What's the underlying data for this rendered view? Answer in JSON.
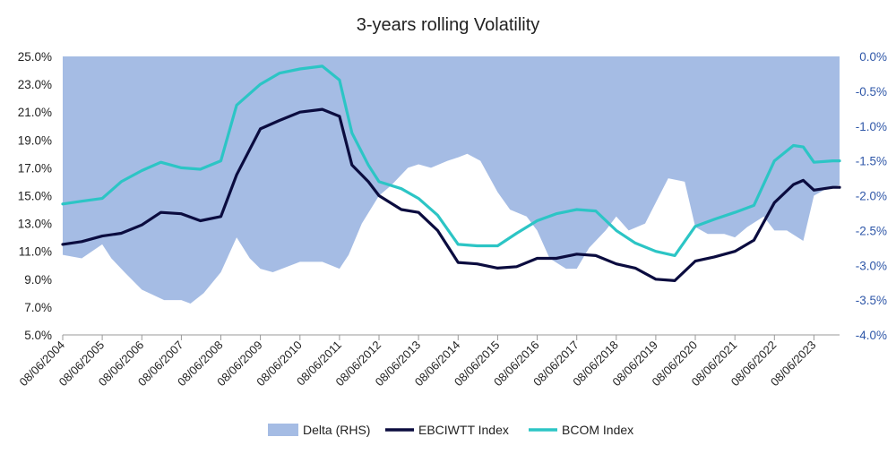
{
  "chart_data": {
    "type": "line",
    "title": "3-years rolling Volatility",
    "xlabel": "",
    "ylabel": "",
    "x_tick_labels": [
      "08/06/2004",
      "08/06/2005",
      "08/06/2006",
      "08/06/2007",
      "08/06/2008",
      "08/06/2009",
      "08/06/2010",
      "08/06/2011",
      "08/06/2012",
      "08/06/2013",
      "08/06/2014",
      "08/06/2015",
      "08/06/2016",
      "08/06/2017",
      "08/06/2018",
      "08/06/2019",
      "08/06/2020",
      "08/06/2021",
      "08/06/2022",
      "08/06/2023"
    ],
    "y_left": {
      "ticks": [
        "25.0%",
        "23.0%",
        "21.0%",
        "19.0%",
        "17.0%",
        "15.0%",
        "13.0%",
        "11.0%",
        "9.0%",
        "7.0%",
        "5.0%"
      ],
      "min": 5,
      "max": 25
    },
    "y_right": {
      "ticks": [
        "0.0%",
        "-0.5%",
        "-1.0%",
        "-1.5%",
        "-2.0%",
        "-2.5%",
        "-3.0%",
        "-3.5%",
        "-4.0%"
      ],
      "min": -4,
      "max": 0
    },
    "legend": {
      "position": "bottom"
    },
    "grid": false,
    "series": [
      {
        "name": "Delta (RHS)",
        "type": "area",
        "axis": "right",
        "color": "#a5bce4",
        "x": [
          "2004-06-08",
          "2004-12-01",
          "2005-06-08",
          "2005-09-01",
          "2006-01-01",
          "2006-06-08",
          "2007-01-01",
          "2007-06-08",
          "2007-09-01",
          "2008-01-01",
          "2008-06-08",
          "2008-11-01",
          "2009-03-01",
          "2009-06-08",
          "2009-10-01",
          "2010-06-08",
          "2011-01-01",
          "2011-06-08",
          "2011-09-01",
          "2012-01-01",
          "2012-06-08",
          "2012-10-01",
          "2013-03-01",
          "2013-06-08",
          "2013-10-01",
          "2014-03-01",
          "2014-06-08",
          "2014-09-01",
          "2015-01-01",
          "2015-06-08",
          "2015-10-01",
          "2016-03-01",
          "2016-06-08",
          "2016-10-01",
          "2017-03-01",
          "2017-06-08",
          "2017-10-01",
          "2018-03-01",
          "2018-06-08",
          "2018-10-01",
          "2019-03-01",
          "2019-06-08",
          "2019-10-01",
          "2020-03-01",
          "2020-06-08",
          "2020-10-01",
          "2021-03-01",
          "2021-06-08",
          "2021-10-01",
          "2022-03-01",
          "2022-06-08",
          "2022-10-01",
          "2023-03-01",
          "2023-06-08",
          "2023-10-01",
          "2024-02-01"
        ],
        "values": [
          -2.85,
          -2.9,
          -2.7,
          -2.9,
          -3.1,
          -3.35,
          -3.5,
          -3.5,
          -3.55,
          -3.4,
          -3.1,
          -2.6,
          -2.9,
          -3.05,
          -3.1,
          -2.95,
          -2.95,
          -3.05,
          -2.85,
          -2.4,
          -2.0,
          -1.85,
          -1.6,
          -1.55,
          -1.6,
          -1.5,
          -1.45,
          -1.4,
          -1.5,
          -1.95,
          -2.2,
          -2.3,
          -2.5,
          -2.9,
          -3.05,
          -3.05,
          -2.75,
          -2.5,
          -2.3,
          -2.5,
          -2.4,
          -2.1,
          -1.75,
          -1.8,
          -2.45,
          -2.55,
          -2.55,
          -2.6,
          -2.45,
          -2.3,
          -2.5,
          -2.5,
          -2.65,
          -2.0,
          -1.9,
          -1.85
        ]
      },
      {
        "name": "EBCIWTT Index",
        "type": "line",
        "axis": "left",
        "color": "#0b0c3f",
        "x": [
          "2004-06-08",
          "2004-12-01",
          "2005-06-08",
          "2005-12-01",
          "2006-06-08",
          "2006-12-01",
          "2007-06-08",
          "2007-12-01",
          "2008-06-08",
          "2008-11-01",
          "2009-06-08",
          "2009-12-01",
          "2010-06-08",
          "2011-01-01",
          "2011-06-08",
          "2011-10-01",
          "2012-03-01",
          "2012-06-08",
          "2013-01-01",
          "2013-06-08",
          "2013-12-01",
          "2014-06-08",
          "2014-12-01",
          "2015-06-08",
          "2015-12-01",
          "2016-06-08",
          "2016-12-01",
          "2017-06-08",
          "2017-12-01",
          "2018-06-08",
          "2018-12-01",
          "2019-06-08",
          "2019-12-01",
          "2020-06-08",
          "2020-12-01",
          "2021-06-08",
          "2021-12-01",
          "2022-06-08",
          "2022-12-01",
          "2023-03-01",
          "2023-06-08",
          "2023-12-01",
          "2024-02-01"
        ],
        "values": [
          11.5,
          11.7,
          12.1,
          12.3,
          12.9,
          13.8,
          13.7,
          13.2,
          13.5,
          16.5,
          19.8,
          20.4,
          21.0,
          21.2,
          20.7,
          17.2,
          16.0,
          15.0,
          14.0,
          13.8,
          12.5,
          10.2,
          10.1,
          9.8,
          9.9,
          10.5,
          10.5,
          10.8,
          10.7,
          10.1,
          9.8,
          9.0,
          8.9,
          10.3,
          10.6,
          11.0,
          11.8,
          14.5,
          15.8,
          16.1,
          15.4,
          15.6,
          15.6
        ]
      },
      {
        "name": "BCOM Index",
        "type": "line",
        "axis": "left",
        "color": "#2cc5c5",
        "x": [
          "2004-06-08",
          "2004-12-01",
          "2005-06-08",
          "2005-12-01",
          "2006-06-08",
          "2006-12-01",
          "2007-06-08",
          "2007-12-01",
          "2008-06-08",
          "2008-11-01",
          "2009-06-08",
          "2009-12-01",
          "2010-06-08",
          "2011-01-01",
          "2011-06-08",
          "2011-10-01",
          "2012-03-01",
          "2012-06-08",
          "2013-01-01",
          "2013-06-08",
          "2013-12-01",
          "2014-06-08",
          "2014-12-01",
          "2015-06-08",
          "2015-12-01",
          "2016-06-08",
          "2016-12-01",
          "2017-06-08",
          "2017-12-01",
          "2018-06-08",
          "2018-12-01",
          "2019-06-08",
          "2019-12-01",
          "2020-06-08",
          "2020-12-01",
          "2021-06-08",
          "2021-12-01",
          "2022-06-08",
          "2022-12-01",
          "2023-03-01",
          "2023-06-08",
          "2023-12-01",
          "2024-02-01"
        ],
        "values": [
          14.4,
          14.6,
          14.8,
          16.0,
          16.8,
          17.4,
          17.0,
          16.9,
          17.5,
          21.5,
          23.0,
          23.8,
          24.1,
          24.3,
          23.3,
          19.5,
          17.2,
          16.0,
          15.5,
          14.8,
          13.6,
          11.5,
          11.4,
          11.4,
          12.3,
          13.2,
          13.7,
          14.0,
          13.9,
          12.5,
          11.6,
          11.0,
          10.7,
          12.8,
          13.3,
          13.8,
          14.3,
          17.5,
          18.6,
          18.5,
          17.4,
          17.5,
          17.5
        ]
      }
    ]
  }
}
